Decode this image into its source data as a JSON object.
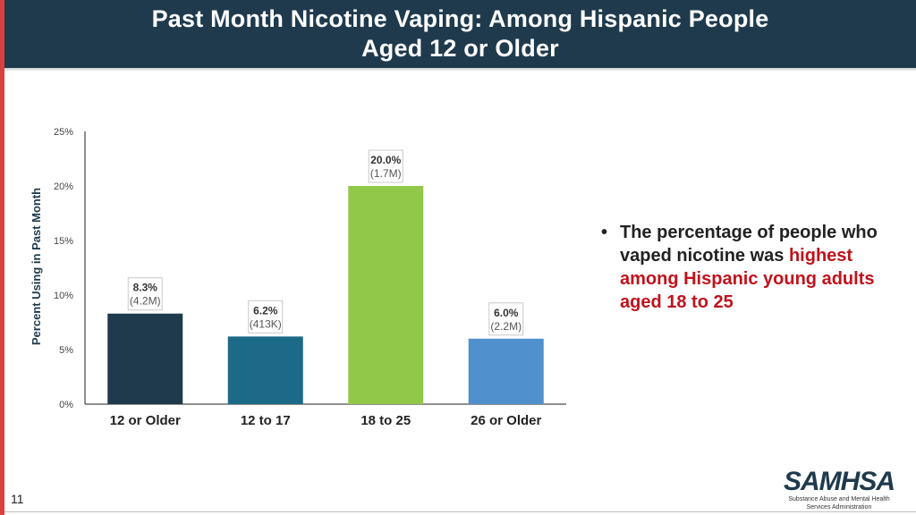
{
  "header": {
    "title_line1": "Past Month Nicotine Vaping: Among Hispanic People",
    "title_line2": "Aged 12 or Older"
  },
  "colors": {
    "header_bg": "#1f3a4d",
    "accent_red": "#d9413f",
    "highlight_red": "#c0121c"
  },
  "chart_data": {
    "type": "bar",
    "categories": [
      "12 or Older",
      "12 to 17",
      "18 to 25",
      "26 or Older"
    ],
    "values": [
      8.3,
      6.2,
      20.0,
      6.0
    ],
    "value_labels": [
      "8.3%",
      "6.2%",
      "20.0%",
      "6.0%"
    ],
    "count_labels": [
      "(4.2M)",
      "(413K)",
      "(1.7M)",
      "(2.2M)"
    ],
    "bar_colors": [
      "#1f3a4d",
      "#1c6a87",
      "#92c84a",
      "#4f90cd"
    ],
    "ylabel": "Percent Using in Past Month",
    "ylim": [
      0,
      25
    ],
    "yticks": [
      0,
      5,
      10,
      15,
      20,
      25
    ],
    "ytick_labels": [
      "0%",
      "5%",
      "10%",
      "15%",
      "20%",
      "25%"
    ],
    "grid": false
  },
  "bullet": {
    "text_plain": "The percentage of people who vaped nicotine was ",
    "text_highlight": "highest among Hispanic young adults aged 18 to 25"
  },
  "footer": {
    "page_number": "11",
    "logo_text": "SAMHSA",
    "logo_sub_line1": "Substance Abuse and Mental Health",
    "logo_sub_line2": "Services Administration"
  }
}
